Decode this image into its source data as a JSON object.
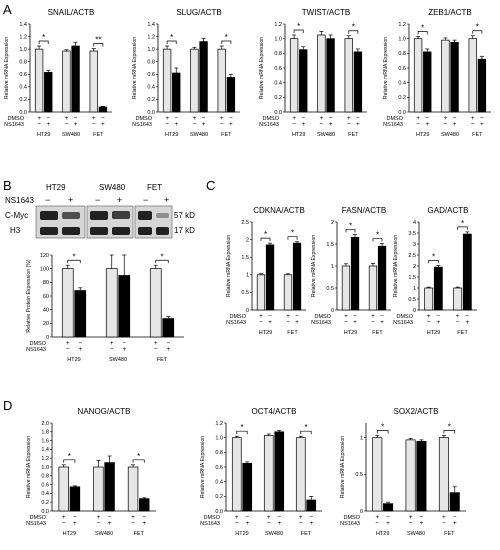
{
  "panels": {
    "A": {
      "letter": "A"
    },
    "B": {
      "letter": "B"
    },
    "C": {
      "letter": "C"
    },
    "D": {
      "letter": "D"
    }
  },
  "blot": {
    "treatment_label": "NS1643",
    "groups": [
      "HT29",
      "SW480",
      "FET"
    ],
    "lane_signs": [
      "−",
      "+",
      "−",
      "+",
      "−",
      "+"
    ],
    "rows": [
      {
        "name": "C-Myc",
        "size": "57 kD"
      },
      {
        "name": "H3",
        "size": "17 kD"
      }
    ]
  },
  "treatment_row_labels": [
    "DMSO",
    "NS1643"
  ],
  "chart_data": [
    {
      "id": "A-snail",
      "type": "bar",
      "title": "SNAIL/ACTB",
      "ylabel": "Relative mRNA Expression",
      "ylim": [
        0,
        1.4
      ],
      "yticks": [
        0,
        0.2,
        0.4,
        0.6,
        0.8,
        1.0,
        1.2,
        1.4
      ],
      "categories": [
        "HT29",
        "SW480",
        "FET"
      ],
      "dmso": [
        "+",
        "−",
        "+",
        "−",
        "+",
        "−"
      ],
      "ns": [
        "−",
        "+",
        "−",
        "+",
        "−",
        "+"
      ],
      "series": [
        {
          "name": "DMSO",
          "values": [
            1.0,
            0.97,
            0.97
          ]
        },
        {
          "name": "NS1643",
          "values": [
            0.63,
            1.05,
            0.08
          ]
        }
      ],
      "errors": [
        [
          0.05,
          0.02,
          0.04
        ],
        [
          0.03,
          0.06,
          0.01
        ]
      ],
      "significance": [
        "*",
        "",
        "**"
      ]
    },
    {
      "id": "A-slug",
      "type": "bar",
      "title": "SLUG/ACTB",
      "ylabel": "Relative mRNA Expression",
      "ylim": [
        0,
        1.4
      ],
      "yticks": [
        0,
        0.2,
        0.4,
        0.6,
        0.8,
        1.0,
        1.2,
        1.4
      ],
      "categories": [
        "HT29",
        "SW480",
        "FET"
      ],
      "dmso": [
        "+",
        "−",
        "+",
        "−",
        "+",
        "−"
      ],
      "ns": [
        "−",
        "+",
        "−",
        "+",
        "−",
        "+"
      ],
      "series": [
        {
          "name": "DMSO",
          "values": [
            1.0,
            1.0,
            1.0
          ]
        },
        {
          "name": "NS1643",
          "values": [
            0.62,
            1.12,
            0.55
          ]
        }
      ],
      "errors": [
        [
          0.05,
          0.03,
          0.05
        ],
        [
          0.08,
          0.05,
          0.05
        ]
      ],
      "significance": [
        "*",
        "",
        "*"
      ]
    },
    {
      "id": "A-twist",
      "type": "bar",
      "title": "TWIST/ACTB",
      "ylabel": "Relative mRNA Expression",
      "ylim": [
        0,
        1.2
      ],
      "yticks": [
        0,
        0.2,
        0.4,
        0.6,
        0.8,
        1.0,
        1.2
      ],
      "categories": [
        "HT29",
        "SW480",
        "FET"
      ],
      "dmso": [
        "+",
        "−",
        "+",
        "−",
        "+",
        "−"
      ],
      "ns": [
        "−",
        "+",
        "−",
        "+",
        "−",
        "+"
      ],
      "series": [
        {
          "name": "DMSO",
          "values": [
            1.0,
            1.05,
            1.0
          ]
        },
        {
          "name": "NS1643",
          "values": [
            0.85,
            1.0,
            0.82
          ]
        }
      ],
      "errors": [
        [
          0.05,
          0.05,
          0.04
        ],
        [
          0.04,
          0.05,
          0.04
        ]
      ],
      "significance": [
        "*",
        "",
        "*"
      ]
    },
    {
      "id": "A-zeb1",
      "type": "bar",
      "title": "ZEB1/ACTB",
      "ylabel": "Relative mRNA Expression",
      "ylim": [
        0,
        1.2
      ],
      "yticks": [
        0,
        0.2,
        0.4,
        0.6,
        0.8,
        1.0,
        1.2
      ],
      "categories": [
        "HT29",
        "SW480",
        "FET"
      ],
      "dmso": [
        "+",
        "−",
        "+",
        "−",
        "+",
        "−"
      ],
      "ns": [
        "−",
        "+",
        "−",
        "+",
        "−",
        "+"
      ],
      "series": [
        {
          "name": "DMSO",
          "values": [
            1.0,
            0.98,
            1.0
          ]
        },
        {
          "name": "NS1643",
          "values": [
            0.82,
            0.95,
            0.72
          ]
        }
      ],
      "errors": [
        [
          0.03,
          0.03,
          0.04
        ],
        [
          0.04,
          0.03,
          0.04
        ]
      ],
      "significance": [
        "*",
        "",
        "*"
      ]
    },
    {
      "id": "B-protein",
      "type": "bar",
      "title": "",
      "ylabel": "Relative Protein Expression (%)",
      "ylim": [
        0,
        120
      ],
      "yticks": [
        0,
        20,
        40,
        60,
        80,
        100,
        120
      ],
      "categories": [
        "HT29",
        "SW480",
        "FET"
      ],
      "dmso": [
        "+",
        "−",
        "+",
        "−",
        "+",
        "−"
      ],
      "ns": [
        "−",
        "+",
        "−",
        "+",
        "−",
        "+"
      ],
      "series": [
        {
          "name": "DMSO",
          "values": [
            100,
            100,
            100
          ]
        },
        {
          "name": "NS1643",
          "values": [
            68,
            90,
            27
          ]
        }
      ],
      "errors": [
        [
          5,
          35,
          5
        ],
        [
          4,
          30,
          3
        ]
      ],
      "significance": [
        "*",
        "",
        "*"
      ]
    },
    {
      "id": "C-cdkna",
      "type": "bar",
      "title": "CDKNA/ACTB",
      "ylabel": "Relative mRNA Expression",
      "ylim": [
        0,
        2.5
      ],
      "yticks": [
        0,
        0.5,
        1.0,
        1.5,
        2.0,
        2.5
      ],
      "categories": [
        "HT29",
        "FET"
      ],
      "dmso": [
        "+",
        "−",
        "+",
        "−"
      ],
      "ns": [
        "−",
        "+",
        "−",
        "+"
      ],
      "series": [
        {
          "name": "DMSO",
          "values": [
            1.0,
            1.0
          ]
        },
        {
          "name": "NS1643",
          "values": [
            1.85,
            1.9
          ]
        }
      ],
      "errors": [
        [
          0.03,
          0.03
        ],
        [
          0.05,
          0.04
        ]
      ],
      "significance": [
        "*",
        "*"
      ]
    },
    {
      "id": "C-fasn",
      "type": "bar",
      "title": "FASN/ACTB",
      "ylabel": "Relative mRNA Expression",
      "ylim": [
        0,
        2.0
      ],
      "yticks": [
        0,
        0.5,
        1.0,
        1.5,
        2.0
      ],
      "categories": [
        "HT29",
        "FET"
      ],
      "dmso": [
        "+",
        "−",
        "+",
        "−"
      ],
      "ns": [
        "−",
        "+",
        "−",
        "+"
      ],
      "series": [
        {
          "name": "DMSO",
          "values": [
            1.0,
            1.0
          ]
        },
        {
          "name": "NS1643",
          "values": [
            1.65,
            1.45
          ]
        }
      ],
      "errors": [
        [
          0.05,
          0.06
        ],
        [
          0.07,
          0.06
        ]
      ],
      "significance": [
        "*",
        "*"
      ]
    },
    {
      "id": "C-gad",
      "type": "bar",
      "title": "GAD/ACTB",
      "ylabel": "Relative mRNA Expression",
      "ylim": [
        0,
        4.0
      ],
      "yticks": [
        0,
        0.5,
        1.0,
        1.5,
        2.0,
        2.5,
        3.0,
        3.5,
        4.0
      ],
      "categories": [
        "HT29",
        "FET"
      ],
      "dmso": [
        "+",
        "−",
        "+",
        "−"
      ],
      "ns": [
        "−",
        "+",
        "−",
        "+"
      ],
      "series": [
        {
          "name": "DMSO",
          "values": [
            1.0,
            1.0
          ]
        },
        {
          "name": "NS1643",
          "values": [
            1.95,
            3.45
          ]
        }
      ],
      "errors": [
        [
          0.04,
          0.04
        ],
        [
          0.08,
          0.1
        ]
      ],
      "significance": [
        "*",
        "*"
      ]
    },
    {
      "id": "D-nanog",
      "type": "bar",
      "title": "NANOG/ACTB",
      "ylabel": "Relative mRNA Expression",
      "ylim": [
        0,
        2.0
      ],
      "yticks": [
        0,
        0.2,
        0.4,
        0.6,
        0.8,
        1.0,
        1.2,
        1.4,
        1.6,
        1.8,
        2.0
      ],
      "categories": [
        "HT29",
        "SW480",
        "FET"
      ],
      "dmso": [
        "+",
        "−",
        "+",
        "−",
        "+",
        "−"
      ],
      "ns": [
        "−",
        "+",
        "−",
        "+",
        "−",
        "+"
      ],
      "series": [
        {
          "name": "DMSO",
          "values": [
            1.0,
            1.0,
            1.0
          ]
        },
        {
          "name": "NS1643",
          "values": [
            0.55,
            1.1,
            0.28
          ]
        }
      ],
      "errors": [
        [
          0.05,
          0.15,
          0.05
        ],
        [
          0.02,
          0.15,
          0.02
        ]
      ],
      "significance": [
        "*",
        "",
        "*"
      ]
    },
    {
      "id": "D-oct4",
      "type": "bar",
      "title": "OCT4/ACTB",
      "ylabel": "Relative mRNA Expression",
      "ylim": [
        0,
        1.2
      ],
      "yticks": [
        0,
        0.2,
        0.4,
        0.6,
        0.8,
        1.0,
        1.2
      ],
      "categories": [
        "HT29",
        "SW480",
        "FET"
      ],
      "dmso": [
        "+",
        "−",
        "+",
        "−",
        "+",
        "−"
      ],
      "ns": [
        "−",
        "+",
        "−",
        "+",
        "−",
        "+"
      ],
      "series": [
        {
          "name": "DMSO",
          "values": [
            1.0,
            1.03,
            1.0
          ]
        },
        {
          "name": "NS1643",
          "values": [
            0.65,
            1.08,
            0.15
          ]
        }
      ],
      "errors": [
        [
          0.02,
          0.02,
          0.02
        ],
        [
          0.02,
          0.02,
          0.05
        ]
      ],
      "significance": [
        "*",
        "",
        "*"
      ]
    },
    {
      "id": "D-sox2",
      "type": "bar",
      "title": "SOX2/ACTB",
      "ylabel": "Relative mRNA Expression",
      "ylim": [
        0,
        1.2
      ],
      "yticks": [
        0,
        0.5,
        1.0
      ],
      "categories": [
        "HT29",
        "SW480",
        "FET"
      ],
      "dmso": [
        "+",
        "−",
        "+",
        "−",
        "+",
        "−"
      ],
      "ns": [
        "−",
        "+",
        "−",
        "+",
        "−",
        "+"
      ],
      "series": [
        {
          "name": "DMSO",
          "values": [
            1.0,
            0.97,
            1.0
          ]
        },
        {
          "name": "NS1643",
          "values": [
            0.1,
            0.95,
            0.25
          ]
        }
      ],
      "errors": [
        [
          0.03,
          0.02,
          0.03
        ],
        [
          0.02,
          0.02,
          0.08
        ]
      ],
      "significance": [
        "*",
        "",
        "*"
      ]
    }
  ]
}
